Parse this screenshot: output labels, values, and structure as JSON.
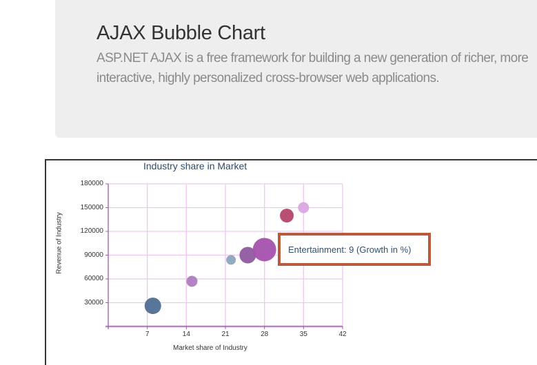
{
  "header": {
    "title": "AJAX Bubble Chart",
    "description": "ASP.NET AJAX is a free framework for building a new generation of richer, more interactive, highly personalized cross-browser web applications."
  },
  "tooltip": {
    "text": "Entertainment: 9 (Growth in %)"
  },
  "colors": {
    "grid": "#efc6f0",
    "axis": "#a05aaf",
    "tooltip_border": "#b85a3c",
    "title": "#2e4a6b"
  },
  "chart_data": {
    "type": "bubble",
    "title": "Industry share in Market",
    "xlabel": "Market share of Industry",
    "ylabel": "Revenue of Industry",
    "xlim": [
      0,
      42
    ],
    "ylim": [
      0,
      180000
    ],
    "x_ticks": [
      "7",
      "14",
      "21",
      "28",
      "35",
      "42"
    ],
    "y_ticks": [
      "30000",
      "60000",
      "90000",
      "120000",
      "150000",
      "180000"
    ],
    "grid": true,
    "legend": "none",
    "points": [
      {
        "x": 8,
        "y": 26000,
        "size": 12,
        "color": "#4f6f91"
      },
      {
        "x": 15,
        "y": 57000,
        "size": 8,
        "color": "#b07cc0"
      },
      {
        "x": 22,
        "y": 84000,
        "size": 7,
        "color": "#8ea5bf"
      },
      {
        "x": 25,
        "y": 90000,
        "size": 12,
        "color": "#8e5aa0"
      },
      {
        "x": 28,
        "y": 97000,
        "size": 17,
        "color": "#a451ad",
        "label": "Entertainment",
        "growth": 9
      },
      {
        "x": 32,
        "y": 140000,
        "size": 10,
        "color": "#b5476b"
      },
      {
        "x": 35,
        "y": 150000,
        "size": 8,
        "color": "#d9a6e0"
      }
    ]
  }
}
